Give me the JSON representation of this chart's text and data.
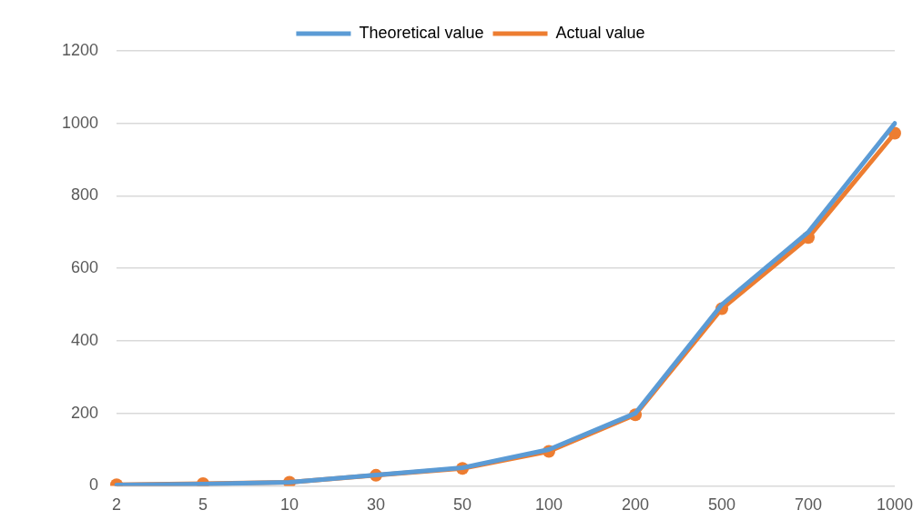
{
  "chart_data": {
    "type": "line",
    "categories": [
      "2",
      "5",
      "10",
      "30",
      "50",
      "100",
      "200",
      "500",
      "700",
      "1000"
    ],
    "series": [
      {
        "name": "Theoretical value",
        "color": "#5b9bd5",
        "marker": "none",
        "values": [
          2,
          5,
          10,
          30,
          50,
          100,
          200,
          500,
          700,
          1000
        ]
      },
      {
        "name": "Actual value",
        "color": "#ed7d31",
        "marker": "circle",
        "values": [
          3,
          6,
          10,
          29,
          48,
          95,
          196,
          489,
          685,
          973
        ]
      }
    ],
    "ylim": [
      0,
      1200
    ],
    "yticks": [
      0,
      200,
      400,
      600,
      800,
      1000,
      1200
    ],
    "grid": "y",
    "legend": "top",
    "line_style": "solid"
  }
}
